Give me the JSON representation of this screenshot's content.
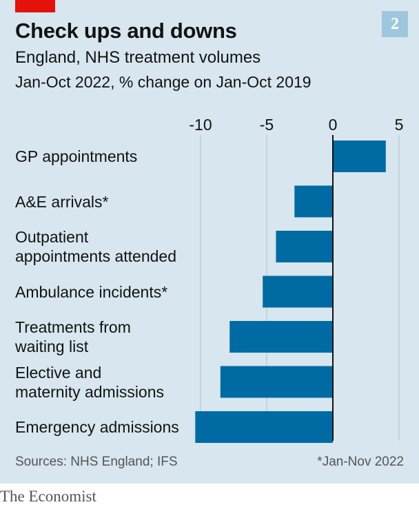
{
  "header": {
    "title": "Check ups and downs",
    "chart_number": "2",
    "subtitle": "England, NHS treatment volumes",
    "subsubtitle": "Jan-Oct 2022, % change on Jan-Oct 2019"
  },
  "footer": {
    "source": "Sources: NHS England; IFS",
    "footnote": "*Jan-Nov 2022",
    "brand": "The Economist"
  },
  "colors": {
    "bar": "#006ba2",
    "background": "#d7e6ef",
    "zero_line": "#121212",
    "grid": "#b7c6cf",
    "accent_red": "#e3120b"
  },
  "chart_data": {
    "type": "bar",
    "orientation": "horizontal",
    "title": "Check ups and downs",
    "subtitle": "England, NHS treatment volumes",
    "xlabel": "Jan-Oct 2022, % change on Jan-Oct 2019",
    "ylabel": "",
    "categories": [
      "GP appointments",
      "A&E arrivals*",
      "Outpatient\nappointments attended",
      "Ambulance incidents*",
      "Treatments from\nwaiting list",
      "Elective and\nmaternity admissions",
      "Emergency admissions"
    ],
    "values": [
      4.0,
      -2.9,
      -4.3,
      -5.3,
      -7.8,
      -8.5,
      -10.4
    ],
    "xlim": [
      -11,
      5
    ],
    "xticks": [
      -10,
      -5,
      0,
      5
    ],
    "xtick_labels": [
      "-10",
      "-5",
      "0",
      "5"
    ],
    "grid": true,
    "legend": "none"
  }
}
